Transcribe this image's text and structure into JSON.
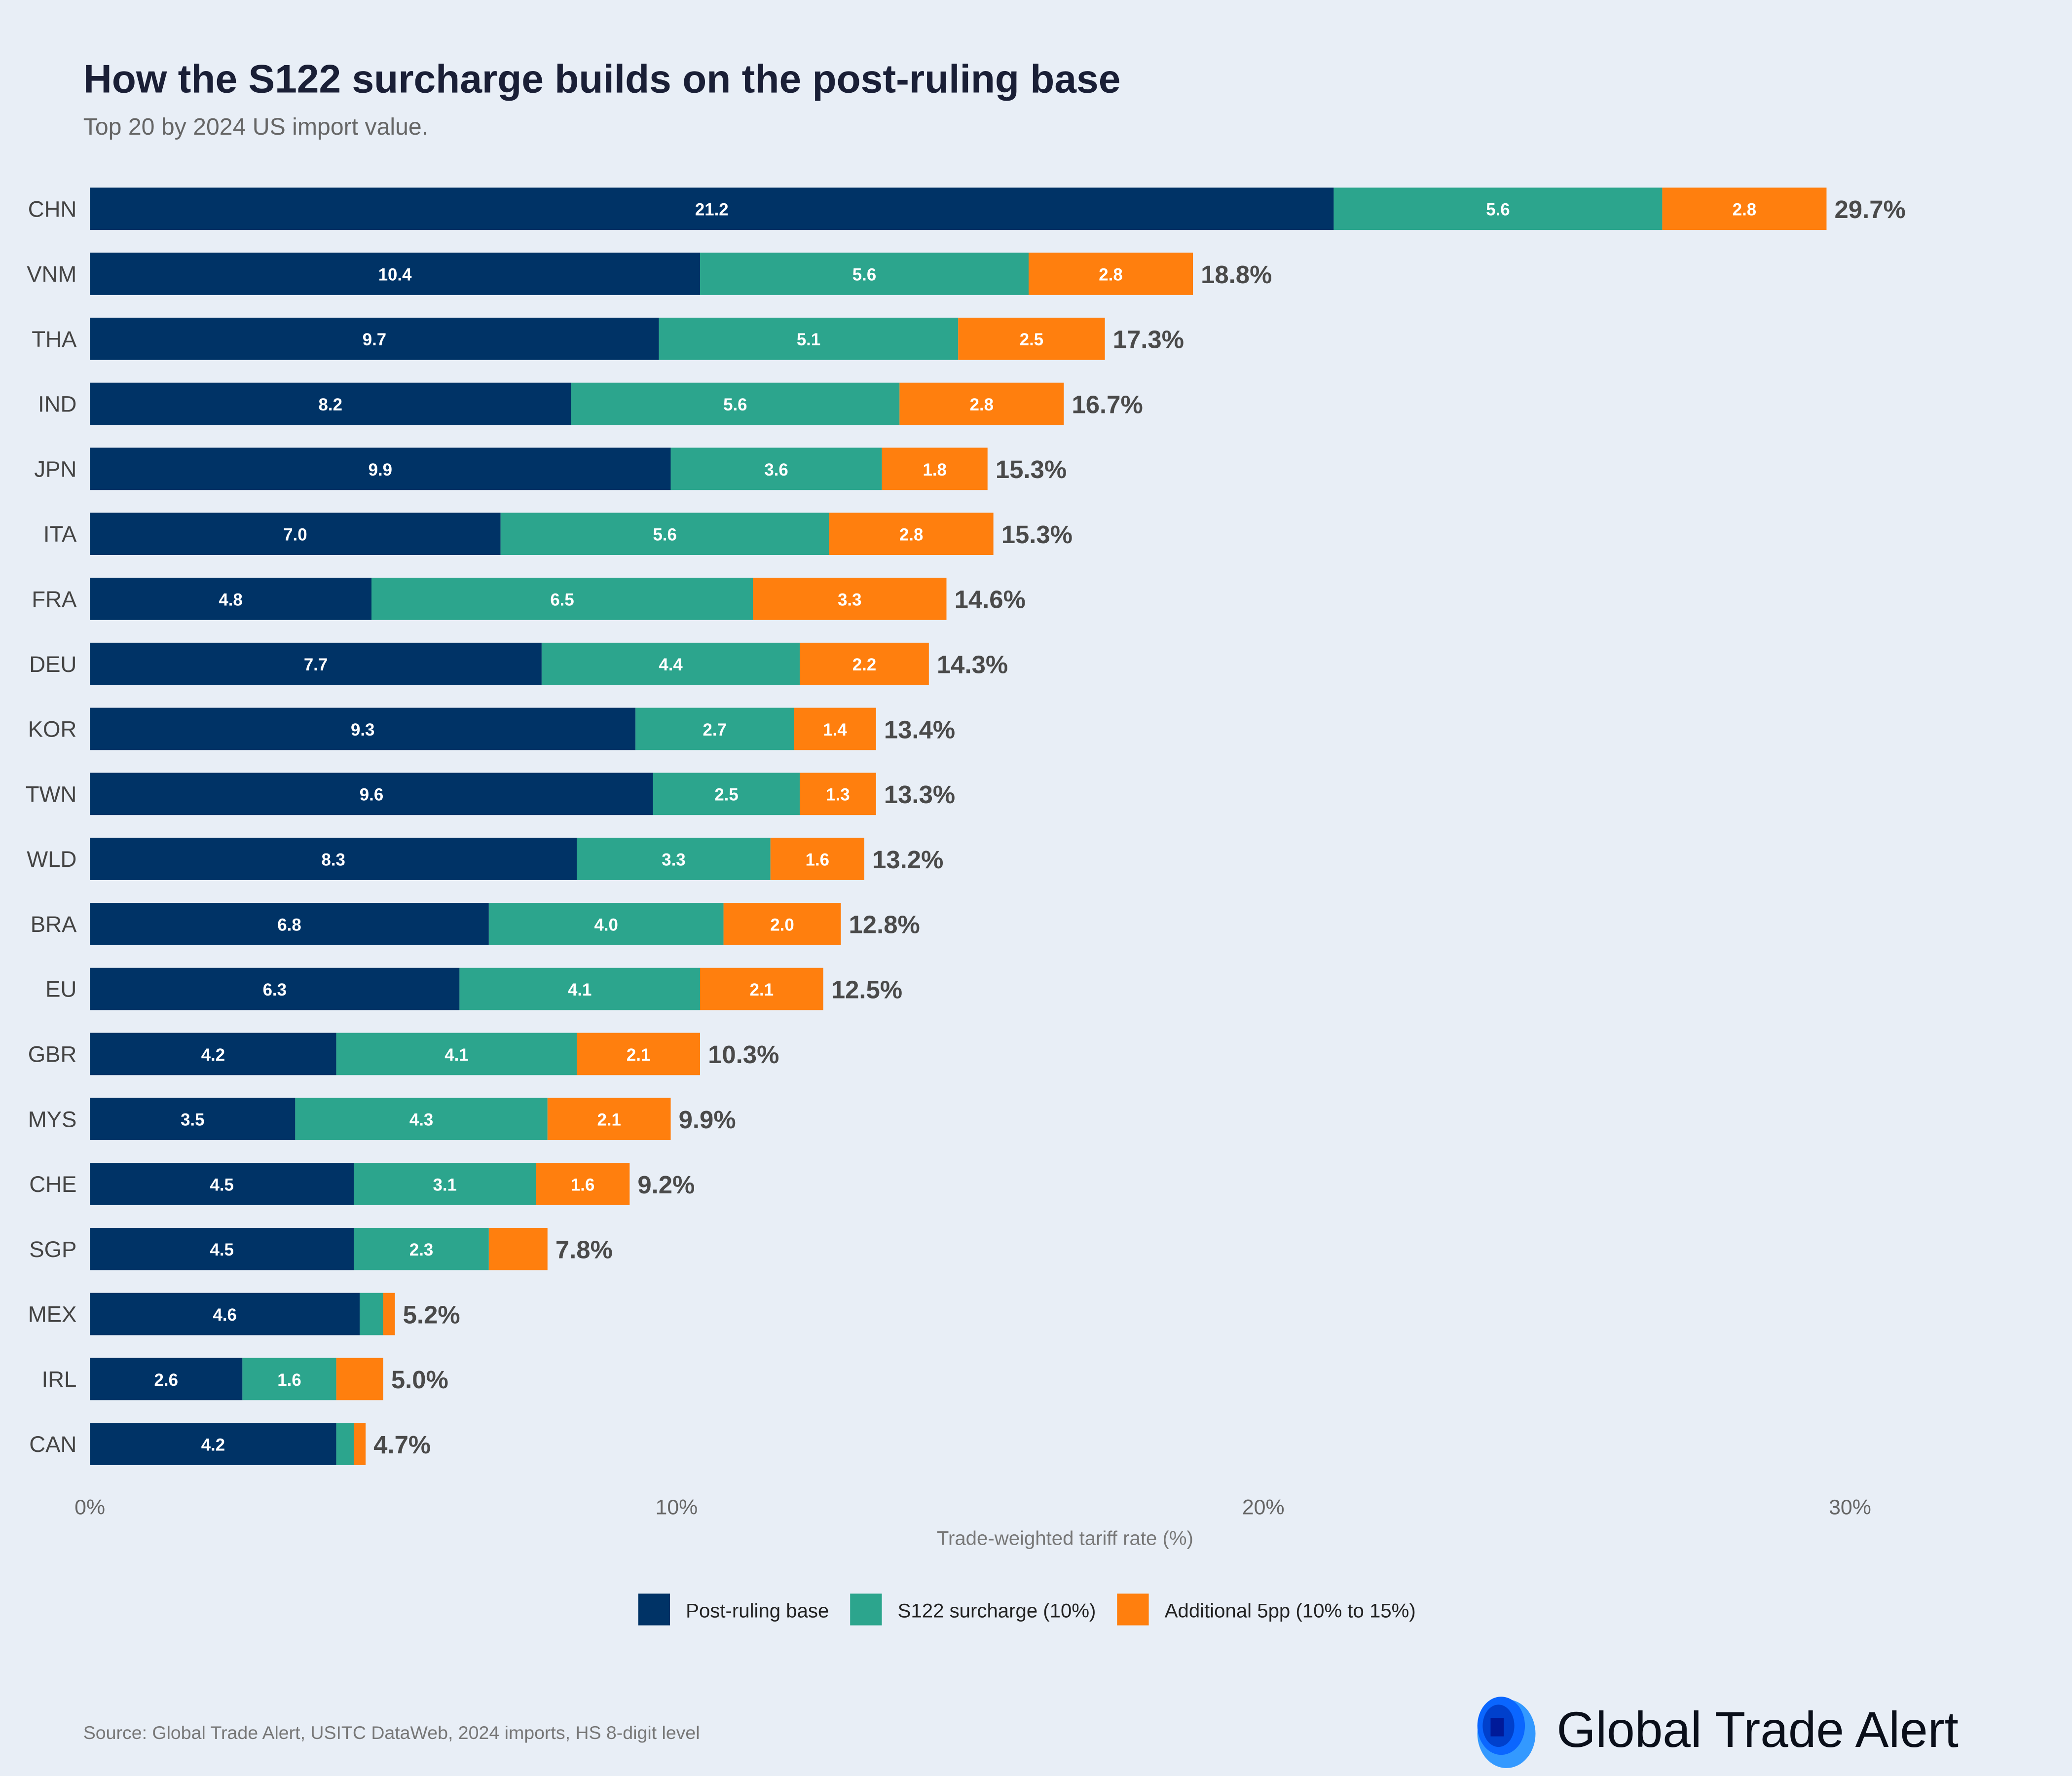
{
  "title": "How the S122 surcharge builds on the post-ruling base",
  "subtitle": "Top 20 by 2024 US import value.",
  "source": "Source: Global Trade Alert, USITC DataWeb, 2024 imports, HS 8-digit level",
  "logo_text": "Global Trade Alert",
  "colors": {
    "base": "#003366",
    "surcharge": "#2ca58d",
    "additional": "#ff7f0e",
    "background": "#e8eef6",
    "logo": "#0a66ff"
  },
  "chart_data": {
    "type": "bar",
    "orientation": "horizontal",
    "stacked": true,
    "xlabel": "Trade-weighted tariff rate (%)",
    "xlim": [
      0,
      32
    ],
    "xticks": [
      0,
      10,
      20,
      30
    ],
    "xtick_labels": [
      "0%",
      "10%",
      "20%",
      "30%"
    ],
    "grid": false,
    "legend_position": "bottom",
    "categories": [
      "CHN",
      "VNM",
      "THA",
      "IND",
      "JPN",
      "ITA",
      "FRA",
      "DEU",
      "KOR",
      "TWN",
      "WLD",
      "BRA",
      "EU",
      "GBR",
      "MYS",
      "CHE",
      "SGP",
      "MEX",
      "IRL",
      "CAN"
    ],
    "series": [
      {
        "name": "Post-ruling base",
        "values": [
          21.2,
          10.4,
          9.7,
          8.2,
          9.9,
          7.0,
          4.8,
          7.7,
          9.3,
          9.6,
          8.3,
          6.8,
          6.3,
          4.2,
          3.5,
          4.5,
          4.5,
          4.6,
          2.6,
          4.2
        ]
      },
      {
        "name": "S122 surcharge (10%)",
        "values": [
          5.6,
          5.6,
          5.1,
          5.6,
          3.6,
          5.6,
          6.5,
          4.4,
          2.7,
          2.5,
          3.3,
          4.0,
          4.1,
          4.1,
          4.3,
          3.1,
          2.3,
          0.4,
          1.6,
          0.3
        ]
      },
      {
        "name": "Additional 5pp (10% to 15%)",
        "values": [
          2.8,
          2.8,
          2.5,
          2.8,
          1.8,
          2.8,
          3.3,
          2.2,
          1.4,
          1.3,
          1.6,
          2.0,
          2.1,
          2.1,
          2.1,
          1.6,
          1.0,
          0.2,
          0.8,
          0.2
        ]
      }
    ],
    "totals": [
      "29.7%",
      "18.8%",
      "17.3%",
      "16.7%",
      "15.3%",
      "15.3%",
      "14.6%",
      "14.3%",
      "13.4%",
      "13.3%",
      "13.2%",
      "12.8%",
      "12.5%",
      "10.3%",
      "9.9%",
      "9.2%",
      "7.8%",
      "5.2%",
      "5.0%",
      "4.7%"
    ]
  }
}
